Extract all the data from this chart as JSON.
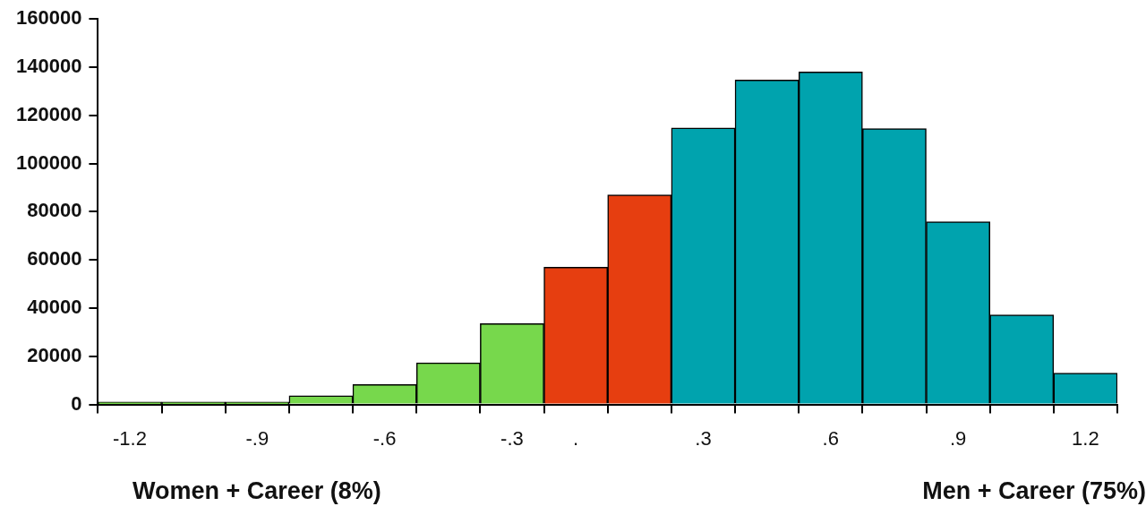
{
  "chart_data": {
    "type": "bar",
    "categories": [
      "-1.2",
      null,
      "-.9",
      null,
      "-.6",
      null,
      "-.3",
      ".",
      null,
      ".3",
      null,
      ".6",
      null,
      ".9",
      null,
      "1.2"
    ],
    "values": [
      1000,
      1000,
      1000,
      3600,
      8300,
      17300,
      33600,
      57000,
      87000,
      114800,
      134700,
      138000,
      114500,
      75800,
      37200,
      13000
    ],
    "colors": [
      "#77d84c",
      "#77d84c",
      "#77d84c",
      "#77d84c",
      "#77d84c",
      "#77d84c",
      "#77d84c",
      "#e63e10",
      "#e63e10",
      "#00a3ae",
      "#00a3ae",
      "#00a3ae",
      "#00a3ae",
      "#00a3ae",
      "#00a3ae",
      "#00a3ae"
    ],
    "ylim": [
      0,
      160000
    ],
    "yticks": [
      0,
      20000,
      40000,
      60000,
      80000,
      100000,
      120000,
      140000,
      160000
    ],
    "grid": false,
    "legend": false,
    "annotations": [
      "Women + Career (8%)",
      "Men + Career (75%)"
    ]
  }
}
